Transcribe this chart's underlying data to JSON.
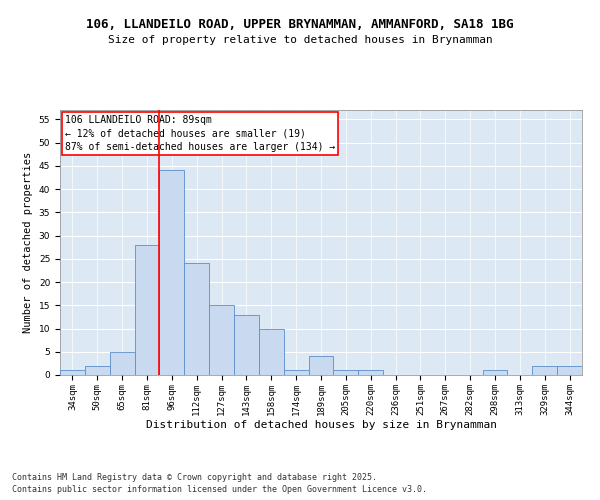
{
  "title1": "106, LLANDEILO ROAD, UPPER BRYNAMMAN, AMMANFORD, SA18 1BG",
  "title2": "Size of property relative to detached houses in Brynamman",
  "xlabel": "Distribution of detached houses by size in Brynamman",
  "ylabel": "Number of detached properties",
  "categories": [
    "34sqm",
    "50sqm",
    "65sqm",
    "81sqm",
    "96sqm",
    "112sqm",
    "127sqm",
    "143sqm",
    "158sqm",
    "174sqm",
    "189sqm",
    "205sqm",
    "220sqm",
    "236sqm",
    "251sqm",
    "267sqm",
    "282sqm",
    "298sqm",
    "313sqm",
    "329sqm",
    "344sqm"
  ],
  "values": [
    1,
    2,
    5,
    28,
    44,
    24,
    15,
    13,
    10,
    1,
    4,
    1,
    1,
    0,
    0,
    0,
    0,
    1,
    0,
    2,
    2
  ],
  "bar_color": "#c9d9f0",
  "bar_edge_color": "#5b8ec9",
  "background_color": "#dde8f5",
  "vline_x": 3.5,
  "vline_color": "red",
  "annotation_title": "106 LLANDEILO ROAD: 89sqm",
  "annotation_line1": "← 12% of detached houses are smaller (19)",
  "annotation_line2": "87% of semi-detached houses are larger (134) →",
  "annotation_box_color": "white",
  "annotation_box_edge": "red",
  "ylim": [
    0,
    57
  ],
  "yticks": [
    0,
    5,
    10,
    15,
    20,
    25,
    30,
    35,
    40,
    45,
    50,
    55
  ],
  "footer1": "Contains HM Land Registry data © Crown copyright and database right 2025.",
  "footer2": "Contains public sector information licensed under the Open Government Licence v3.0.",
  "title1_fontsize": 9,
  "title2_fontsize": 8,
  "xlabel_fontsize": 8,
  "ylabel_fontsize": 7.5,
  "tick_fontsize": 6.5,
  "annotation_fontsize": 7,
  "footer_fontsize": 6
}
